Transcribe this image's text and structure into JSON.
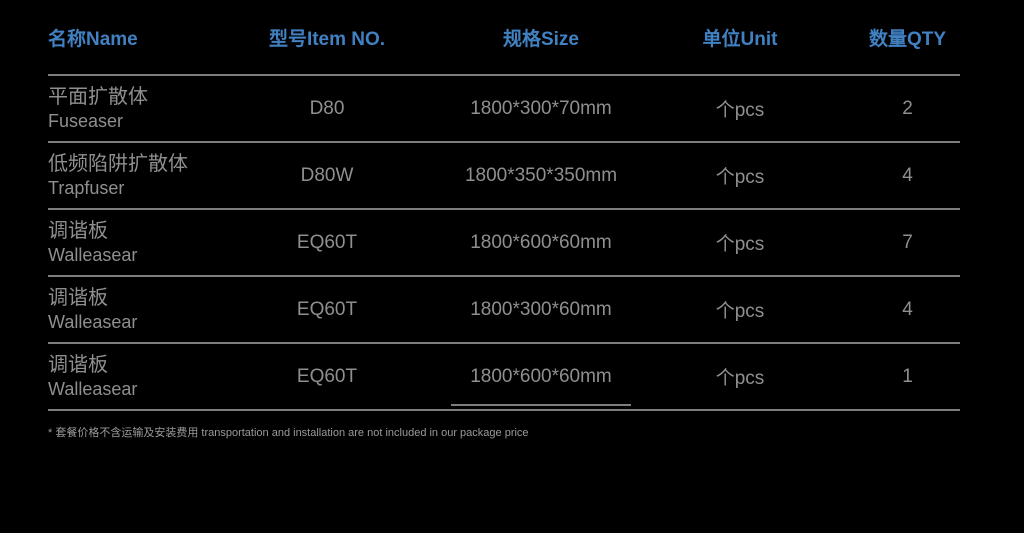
{
  "colors": {
    "page_bg": "#000000",
    "header_text": "#4181c2",
    "body_text": "#8f8f8f",
    "line": "#7e7e7e",
    "footnote_text": "#9a9a9a"
  },
  "table": {
    "headers": [
      {
        "label": "名称Name"
      },
      {
        "label": "型号Item NO."
      },
      {
        "label": "规格Size"
      },
      {
        "label": "单位Unit"
      },
      {
        "label": "数量QTY"
      }
    ],
    "rows": [
      {
        "name_cn": "平面扩散体",
        "name_en": "Fuseaser",
        "item_no": "D80",
        "size": "1800*300*70mm",
        "unit": "个pcs",
        "qty": "2",
        "size_underlined": false
      },
      {
        "name_cn": "低频陷阱扩散体",
        "name_en": "Trapfuser",
        "item_no": "D80W",
        "size": "1800*350*350mm",
        "unit": "个pcs",
        "qty": "4",
        "size_underlined": false
      },
      {
        "name_cn": "调谐板",
        "name_en": "Walleasear",
        "item_no": "EQ60T",
        "size": "1800*600*60mm",
        "unit": "个pcs",
        "qty": "7",
        "size_underlined": false
      },
      {
        "name_cn": "调谐板",
        "name_en": "Walleasear",
        "item_no": "EQ60T",
        "size": "1800*300*60mm",
        "unit": "个pcs",
        "qty": "4",
        "size_underlined": false
      },
      {
        "name_cn": "调谐板",
        "name_en": "Walleasear",
        "item_no": "EQ60T",
        "size": "1800*600*60mm",
        "unit": "个pcs",
        "qty": "1",
        "size_underlined": true
      }
    ]
  },
  "footnote": "* 套餐价格不含运输及安装费用 transportation and installation are not included in our package price"
}
